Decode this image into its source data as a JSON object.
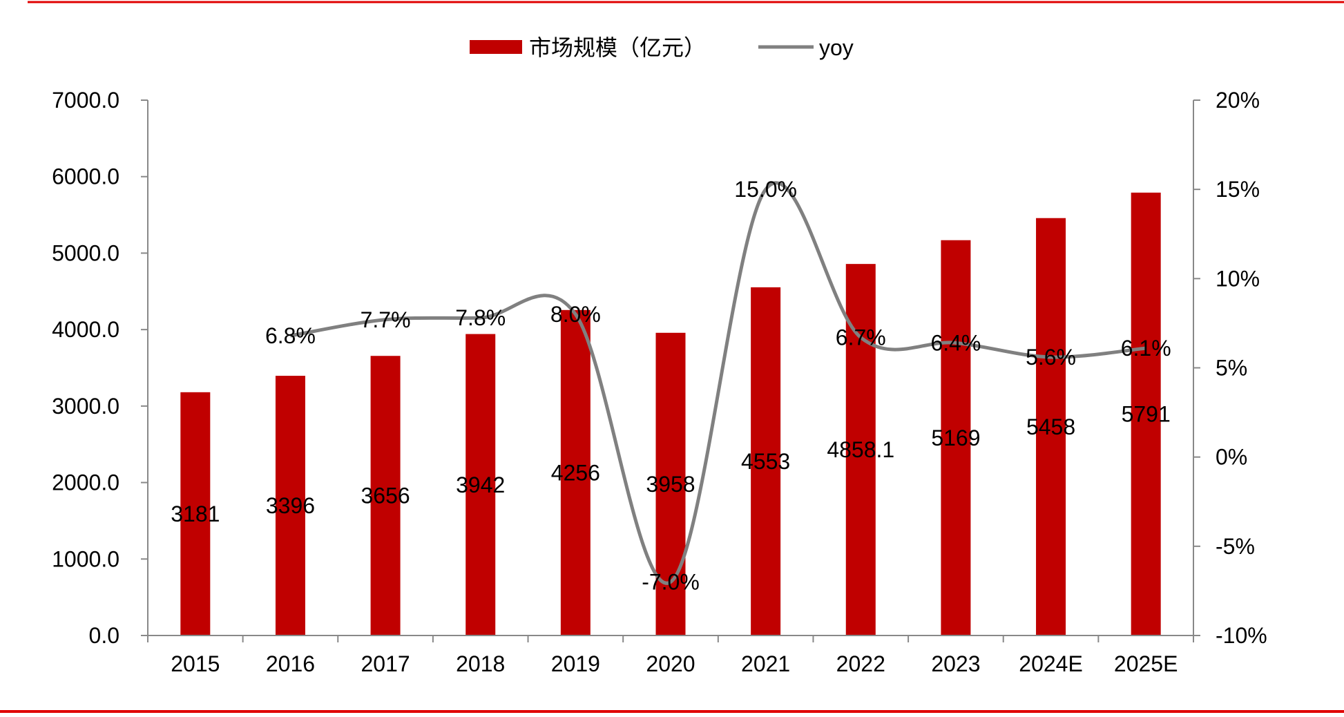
{
  "chart_data": {
    "type": "bar",
    "categories": [
      "2015",
      "2016",
      "2017",
      "2018",
      "2019",
      "2020",
      "2021",
      "2022",
      "2023",
      "2024E",
      "2025E"
    ],
    "series": [
      {
        "name": "市场规模（亿元）",
        "chart": "bar",
        "axis": "left",
        "values": [
          3181,
          3396,
          3656,
          3942,
          4256,
          3958,
          4553,
          4858.1,
          5169,
          5458,
          5791
        ],
        "labels": [
          "3181",
          "3396",
          "3656",
          "3942",
          "4256",
          "3958",
          "4553",
          "4858.1",
          "5169",
          "5458",
          "5791"
        ],
        "color": "#c00000"
      },
      {
        "name": "yoy",
        "chart": "line",
        "axis": "right",
        "smooth": true,
        "values": [
          null,
          6.8,
          7.7,
          7.8,
          8.0,
          -7.0,
          15.0,
          6.7,
          6.4,
          5.6,
          6.1
        ],
        "labels": [
          "",
          "6.8%",
          "7.7%",
          "7.8%",
          "8.0%",
          "-7.0%",
          "15.0%",
          "6.7%",
          "6.4%",
          "5.6%",
          "6.1%"
        ],
        "color": "#808080"
      }
    ],
    "y_left": {
      "ylim": [
        0,
        7000
      ],
      "ticks": [
        0,
        1000,
        2000,
        3000,
        4000,
        5000,
        6000,
        7000
      ],
      "tick_labels": [
        "0.0",
        "1000.0",
        "2000.0",
        "3000.0",
        "4000.0",
        "5000.0",
        "6000.0",
        "7000.0"
      ]
    },
    "y_right": {
      "ylim": [
        -10,
        20
      ],
      "ticks": [
        -10,
        -5,
        0,
        5,
        10,
        15,
        20
      ],
      "tick_labels": [
        "-10%",
        "-5%",
        "0%",
        "5%",
        "10%",
        "15%",
        "20%"
      ]
    },
    "legend_position": "top-center",
    "grid": false,
    "colors": {
      "frame_red": "#e00000",
      "axis": "#888888"
    }
  }
}
